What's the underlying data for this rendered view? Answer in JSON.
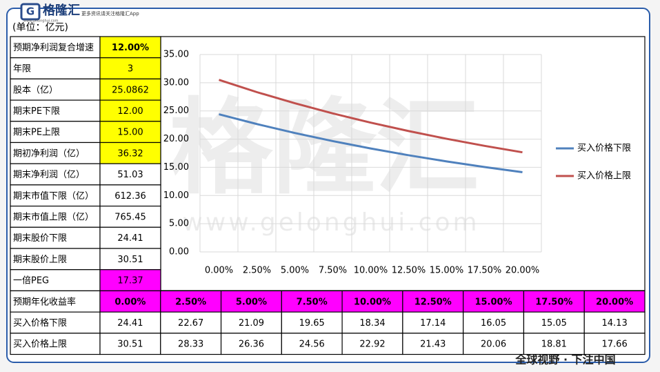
{
  "header": {
    "logo": "格隆汇",
    "slogan": "更多资讯请关注格隆汇App",
    "url": "www.gelonghui.com",
    "unit": "(单位：亿元)"
  },
  "watermark": {
    "text": "格隆汇",
    "url": "www.gelonghui.com"
  },
  "footer": "全球视野 · 下注中国",
  "table": {
    "rows": [
      [
        "预期净利润复合增速",
        "12.00%"
      ],
      [
        "年限",
        "3"
      ],
      [
        "股本（亿）",
        "25.0862"
      ],
      [
        "期末PE下限",
        "12.00"
      ],
      [
        "期末PE上限",
        "15.00"
      ],
      [
        "期初净利润（亿）",
        "36.32"
      ],
      [
        "期末净利润（亿）",
        "51.03"
      ],
      [
        "期末市值下限（亿）",
        "612.36"
      ],
      [
        "期末市值上限（亿）",
        "765.45"
      ],
      [
        "期末股价下限",
        "24.41"
      ],
      [
        "期末股价上限",
        "30.51"
      ],
      [
        "一倍PEG",
        "17.37"
      ]
    ],
    "rate_label": "预期年化收益率"
  },
  "chart_data": {
    "type": "line",
    "categories": [
      "0.00%",
      "2.50%",
      "5.00%",
      "7.50%",
      "10.00%",
      "12.50%",
      "15.00%",
      "17.50%",
      "20.00%"
    ],
    "series": [
      {
        "name": "买入价格下限",
        "color": "#4f81bd",
        "values": [
          24.41,
          22.67,
          21.09,
          19.65,
          18.34,
          17.14,
          16.05,
          15.05,
          14.13
        ]
      },
      {
        "name": "买入价格上限",
        "color": "#c0504d",
        "values": [
          30.51,
          28.33,
          26.36,
          24.56,
          22.92,
          21.43,
          20.06,
          18.81,
          17.66
        ]
      }
    ],
    "ylim": [
      0,
      35
    ],
    "yticks": [
      {
        "value": 0,
        "label": "0.00"
      },
      {
        "value": 5,
        "label": "5.00"
      },
      {
        "value": 10,
        "label": "10.00"
      },
      {
        "value": 15,
        "label": "15.00"
      },
      {
        "value": 20,
        "label": "20.00"
      },
      {
        "value": 25,
        "label": "25.00"
      },
      {
        "value": 30,
        "label": "30.00"
      },
      {
        "value": 35,
        "label": "35.00"
      }
    ],
    "grid": true,
    "legend": "right"
  }
}
